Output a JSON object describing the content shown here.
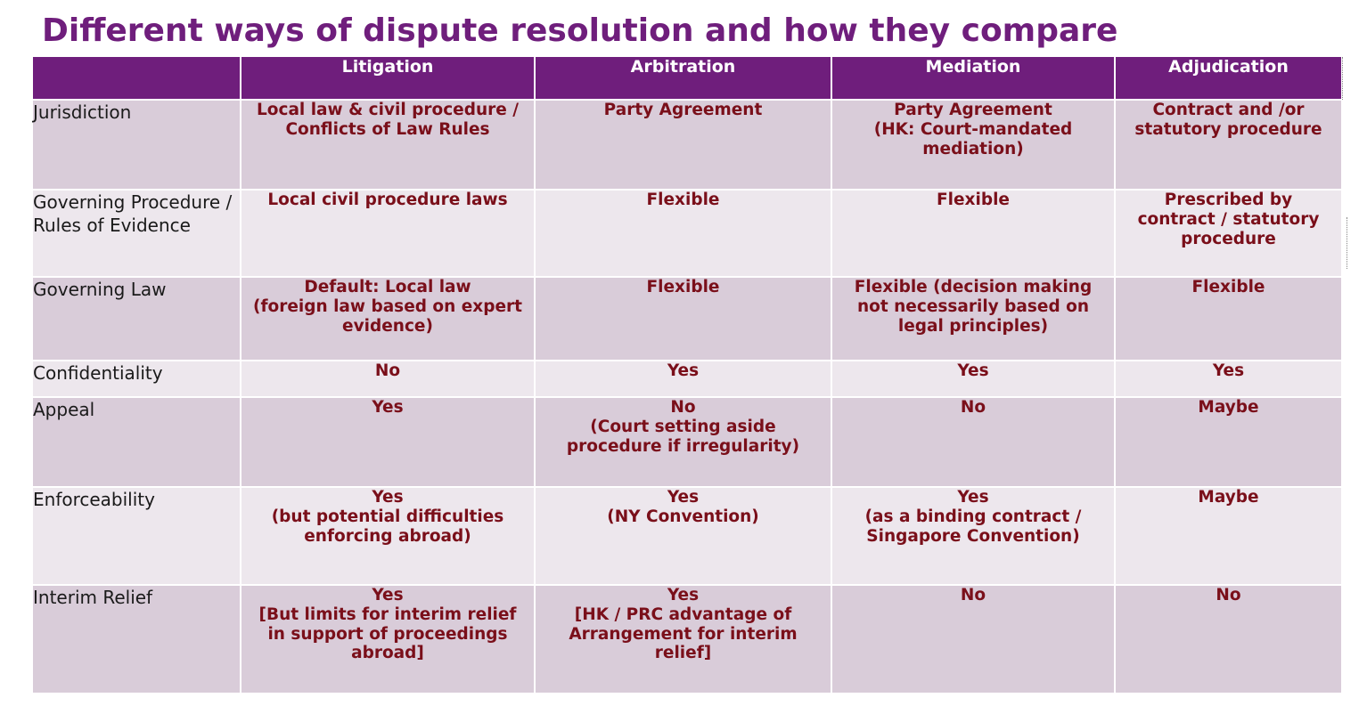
{
  "title": "Different ways of dispute resolution and how they compare",
  "columns": [
    "",
    "Litigation",
    "Arbitration",
    "Mediation",
    "Adjudication"
  ],
  "rows": [
    {
      "label": "Jurisdiction",
      "cells": [
        [
          "Local law & civil procedure /",
          "Conflicts of Law Rules"
        ],
        [
          "Party Agreement"
        ],
        [
          "Party Agreement",
          "(HK: Court-mandated",
          "mediation)"
        ],
        [
          "Contract and /or",
          "statutory procedure"
        ]
      ]
    },
    {
      "label": "Governing Procedure / Rules of Evidence",
      "cells": [
        [
          "Local civil procedure laws"
        ],
        [
          "Flexible"
        ],
        [
          "Flexible"
        ],
        [
          "Prescribed by",
          "contract /  statutory",
          "procedure"
        ]
      ]
    },
    {
      "label": "Governing Law",
      "cells": [
        [
          "Default: Local law",
          "(foreign law based on expert",
          "evidence)"
        ],
        [
          "Flexible"
        ],
        [
          "Flexible (decision making",
          "not necessarily based on",
          "legal principles)"
        ],
        [
          "Flexible"
        ]
      ]
    },
    {
      "label": "Confidentiality",
      "cells": [
        [
          "No"
        ],
        [
          "Yes"
        ],
        [
          "Yes"
        ],
        [
          "Yes"
        ]
      ]
    },
    {
      "label": "Appeal",
      "cells": [
        [
          "Yes"
        ],
        [
          "No",
          "(Court setting aside",
          "procedure if irregularity)"
        ],
        [
          "No"
        ],
        [
          "Maybe"
        ]
      ]
    },
    {
      "label": "Enforceability",
      "cells": [
        [
          "Yes",
          "(but potential difficulties",
          "enforcing abroad)"
        ],
        [
          "Yes",
          "(NY Convention)"
        ],
        [
          "Yes",
          "(as a binding contract /",
          "Singapore Convention)"
        ],
        [
          "Maybe"
        ]
      ]
    },
    {
      "label": "Interim Relief",
      "cells": [
        [
          "Yes",
          "[But limits for interim relief",
          "in support of proceedings",
          "abroad]"
        ],
        [
          "Yes",
          "[HK / PRC advantage of",
          "Arrangement for interim",
          "relief]"
        ],
        [
          "No"
        ],
        [
          "No"
        ]
      ]
    }
  ]
}
